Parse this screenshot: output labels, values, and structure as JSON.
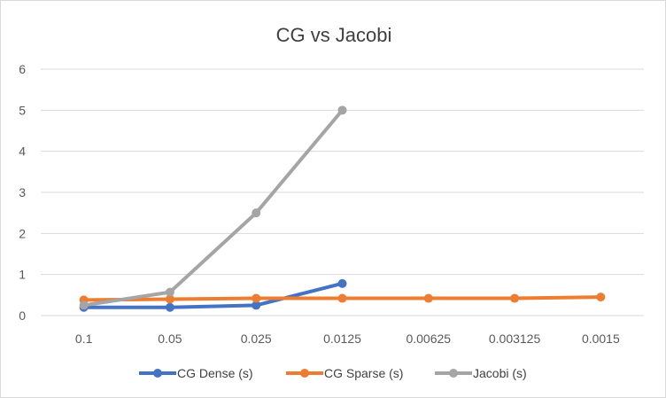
{
  "chart_data": {
    "type": "line",
    "title": "CG vs Jacobi",
    "categories": [
      "0.1",
      "0.05",
      "0.025",
      "0.0125",
      "0.00625",
      "0.003125",
      "0.0015"
    ],
    "ylim": [
      0,
      6
    ],
    "yticks": [
      "0",
      "1",
      "2",
      "3",
      "4",
      "5",
      "6"
    ],
    "grid": true,
    "legend_position": "bottom",
    "series": [
      {
        "name": "CG Dense (s)",
        "color": "#4472c4",
        "values": [
          0.2,
          0.2,
          0.25,
          0.78,
          null,
          null,
          null
        ]
      },
      {
        "name": "CG Sparse (s)",
        "color": "#ed7d31",
        "values": [
          0.38,
          0.4,
          0.42,
          0.42,
          0.42,
          0.42,
          0.45
        ]
      },
      {
        "name": "Jacobi (s)",
        "color": "#a5a5a5",
        "values": [
          0.25,
          0.57,
          2.5,
          5.0,
          null,
          null,
          null
        ]
      }
    ]
  }
}
